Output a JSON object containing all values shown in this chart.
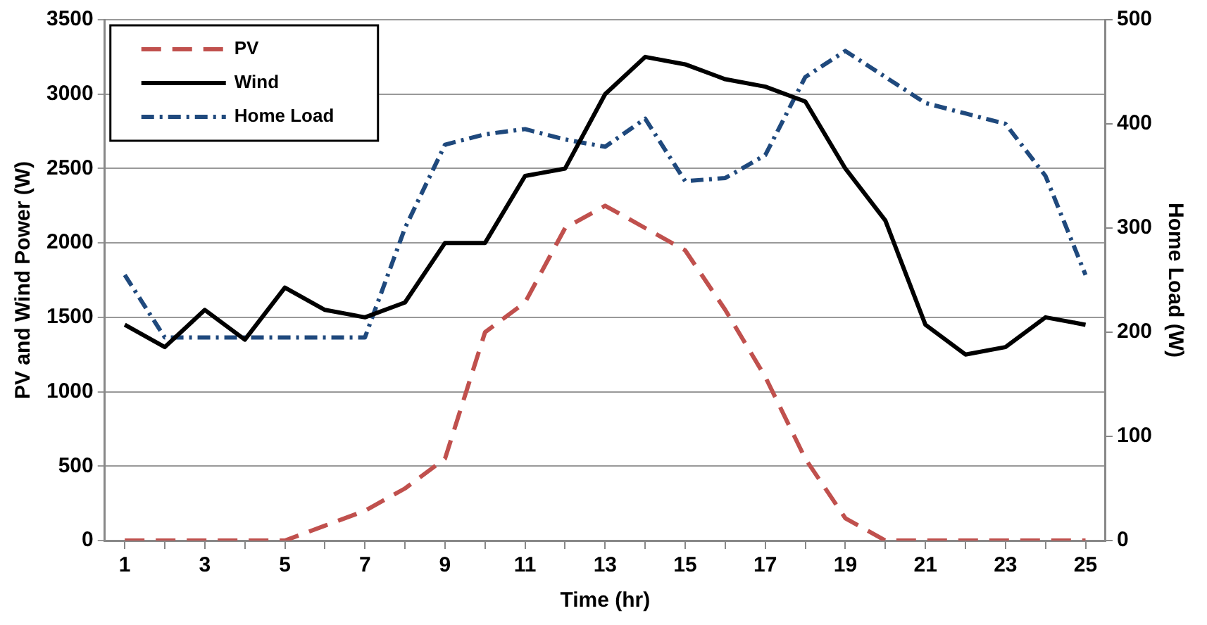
{
  "chart_data": {
    "type": "line",
    "xlabel": "Time (hr)",
    "ylabel": "PV and Wind Power (W)",
    "y2label": "Home Load (W)",
    "x": [
      1,
      2,
      3,
      4,
      5,
      6,
      7,
      8,
      9,
      10,
      11,
      12,
      13,
      14,
      15,
      16,
      17,
      18,
      19,
      20,
      21,
      22,
      23,
      24,
      25
    ],
    "xlim": [
      0.5,
      25.5
    ],
    "xticks": [
      1,
      {
        "value": 2,
        "label": null
      },
      3,
      {
        "value": 4,
        "label": null
      },
      5,
      {
        "value": 6,
        "label": null
      },
      7,
      {
        "value": 8,
        "label": null
      },
      9,
      {
        "value": 10,
        "label": null
      },
      11,
      {
        "value": 12,
        "label": null
      },
      13,
      {
        "value": 14,
        "label": null
      },
      15,
      {
        "value": 16,
        "label": null
      },
      17,
      {
        "value": 18,
        "label": null
      },
      19,
      {
        "value": 20,
        "label": null
      },
      21,
      {
        "value": 22,
        "label": null
      },
      23,
      {
        "value": 24,
        "label": null
      },
      25
    ],
    "series": [
      {
        "name": "PV",
        "color": "#c0504d",
        "line_style": "dashed",
        "values": [
          0,
          0,
          0,
          0,
          0,
          100,
          200,
          350,
          550,
          1400,
          1600,
          2100,
          2250,
          2100,
          1950,
          1550,
          1100,
          550,
          150,
          0,
          0,
          0,
          0,
          0,
          0
        ]
      },
      {
        "name": "Wind",
        "color": "#000000",
        "line_style": "solid",
        "values": [
          1450,
          1300,
          1550,
          1350,
          1700,
          1550,
          1500,
          1600,
          2000,
          2000,
          2450,
          2500,
          3000,
          3250,
          3200,
          3100,
          3050,
          2950,
          2500,
          2150,
          1450,
          1250,
          1300,
          1500,
          1450
        ]
      },
      {
        "name": "Home Load",
        "color": "#1f497d",
        "line_style": "dashdot",
        "axis": "y2",
        "values": [
          255,
          195,
          195,
          195,
          195,
          195,
          195,
          300,
          380,
          390,
          395,
          385,
          378,
          405,
          345,
          348,
          370,
          445,
          470,
          445,
          420,
          410,
          400,
          350,
          255
        ]
      }
    ],
    "ylim": [
      0,
      3500
    ],
    "yticks": [
      0,
      500,
      1000,
      1500,
      2000,
      2500,
      3000,
      3500
    ],
    "y2lim": [
      0,
      500
    ],
    "y2ticks": [
      0,
      100,
      200,
      300,
      400,
      500
    ],
    "grid": "y",
    "legend": "top left",
    "marker": "none"
  }
}
